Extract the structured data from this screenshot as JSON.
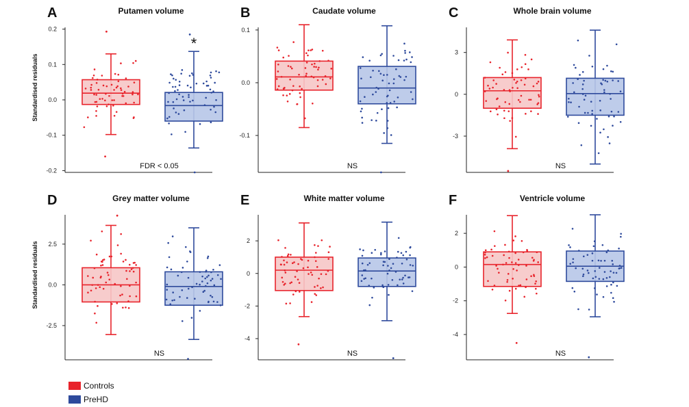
{
  "legend": {
    "controls": {
      "label": "Controls",
      "color": "#e8232b"
    },
    "prehd": {
      "label": "PreHD",
      "color": "#2e4a9c"
    }
  },
  "colors": {
    "control_stroke": "#e8232b",
    "control_fill": "#f6c6c6",
    "prehd_stroke": "#2e4a9c",
    "prehd_fill": "#b7c6e8"
  },
  "chart_data": [
    {
      "type": "box",
      "panel_letter": "A",
      "title": "Putamen volume",
      "ylabel": "Standardised residuals",
      "ylim": [
        -0.205,
        0.205
      ],
      "yticks": [
        0.2,
        0.1,
        0.0,
        -0.1,
        -0.2
      ],
      "yticklabels": [
        "0.2",
        "0.1",
        "0.0",
        "-0.1",
        "-0.2"
      ],
      "annotation": "FDR < 0.05",
      "marker": "*",
      "series": [
        {
          "name": "Controls",
          "whisker_low": -0.098,
          "q1": -0.013,
          "median": 0.019,
          "q3": 0.057,
          "whisker_high": 0.13,
          "outliers": [
            0.193,
            -0.16
          ]
        },
        {
          "name": "PreHD",
          "whisker_low": -0.136,
          "q1": -0.06,
          "median": -0.016,
          "q3": 0.021,
          "whisker_high": 0.137,
          "outliers": [
            0.185,
            -0.205
          ]
        }
      ]
    },
    {
      "type": "box",
      "panel_letter": "B",
      "title": "Caudate volume",
      "ylabel": "",
      "ylim": [
        -0.17,
        0.105
      ],
      "yticks": [
        0.1,
        0.0,
        -0.1
      ],
      "yticklabels": [
        "0.1",
        "0.0",
        "-0.1"
      ],
      "annotation": "NS",
      "series": [
        {
          "name": "Controls",
          "whisker_low": -0.085,
          "q1": -0.014,
          "median": 0.011,
          "q3": 0.041,
          "whisker_high": 0.11,
          "outliers": []
        },
        {
          "name": "PreHD",
          "whisker_low": -0.115,
          "q1": -0.04,
          "median": -0.01,
          "q3": 0.031,
          "whisker_high": 0.108,
          "outliers": [
            -0.17
          ]
        }
      ]
    },
    {
      "type": "box",
      "panel_letter": "C",
      "title": "Whole brain volume",
      "ylabel": "",
      "ylim": [
        -5.6,
        4.8
      ],
      "yticks": [
        3,
        0,
        -3
      ],
      "yticklabels": [
        "3",
        "0",
        "-3"
      ],
      "annotation": "NS",
      "series": [
        {
          "name": "Controls",
          "whisker_low": -3.9,
          "q1": -1.0,
          "median": 0.25,
          "q3": 1.2,
          "whisker_high": 3.9,
          "outliers": [
            -5.5
          ]
        },
        {
          "name": "PreHD",
          "whisker_low": -5.0,
          "q1": -1.5,
          "median": 0.05,
          "q3": 1.15,
          "whisker_high": 4.6,
          "outliers": []
        }
      ]
    },
    {
      "type": "box",
      "panel_letter": "D",
      "title": "Grey matter volume",
      "ylabel": "Standardised residuals",
      "ylim": [
        -4.6,
        4.3
      ],
      "yticks": [
        2.5,
        0.0,
        -2.5
      ],
      "yticklabels": [
        "2.5",
        "0.0",
        "-2.5"
      ],
      "annotation": "NS",
      "series": [
        {
          "name": "Controls",
          "whisker_low": -3.05,
          "q1": -1.05,
          "median": 0.0,
          "q3": 1.05,
          "whisker_high": 3.65,
          "outliers": [
            4.25
          ]
        },
        {
          "name": "PreHD",
          "whisker_low": -3.35,
          "q1": -1.25,
          "median": -0.1,
          "q3": 0.8,
          "whisker_high": 3.5,
          "outliers": [
            -4.55
          ]
        }
      ]
    },
    {
      "type": "box",
      "panel_letter": "E",
      "title": "White matter volume",
      "ylabel": "",
      "ylim": [
        -5.3,
        3.6
      ],
      "yticks": [
        2,
        0,
        -2,
        -4
      ],
      "yticklabels": [
        "2",
        "0",
        "-2",
        "-4"
      ],
      "annotation": "NS",
      "series": [
        {
          "name": "Controls",
          "whisker_low": -2.65,
          "q1": -1.05,
          "median": 0.2,
          "q3": 1.0,
          "whisker_high": 3.1,
          "outliers": [
            -4.35
          ]
        },
        {
          "name": "PreHD",
          "whisker_low": -2.9,
          "q1": -0.8,
          "median": 0.15,
          "q3": 0.95,
          "whisker_high": 3.15,
          "outliers": [
            -5.2
          ]
        }
      ]
    },
    {
      "type": "box",
      "panel_letter": "F",
      "title": "Ventricle volume",
      "ylabel": "",
      "ylim": [
        -5.5,
        3.1
      ],
      "yticks": [
        2,
        0,
        -2,
        -4
      ],
      "yticklabels": [
        "2",
        "0",
        "-2",
        "-4"
      ],
      "annotation": "NS",
      "series": [
        {
          "name": "Controls",
          "whisker_low": -2.75,
          "q1": -1.15,
          "median": 0.15,
          "q3": 0.9,
          "whisker_high": 3.05,
          "outliers": [
            -4.5
          ]
        },
        {
          "name": "PreHD",
          "whisker_low": -2.95,
          "q1": -0.85,
          "median": 0.05,
          "q3": 0.95,
          "whisker_high": 3.1,
          "outliers": [
            -5.35
          ]
        }
      ]
    }
  ]
}
